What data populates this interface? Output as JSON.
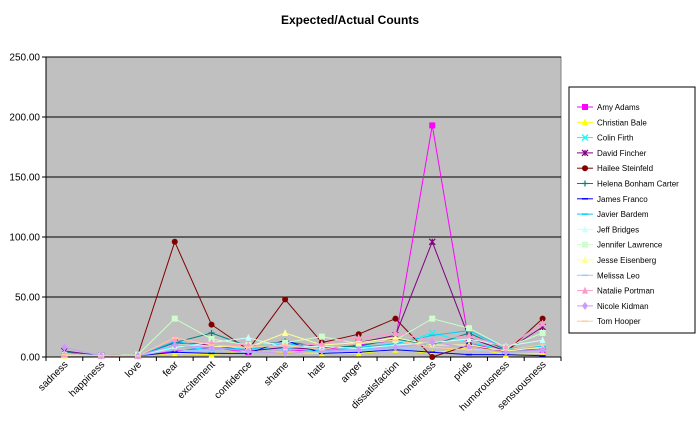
{
  "chart_data": {
    "type": "line",
    "title": "Expected/Actual Counts",
    "xlabel": "",
    "ylabel": "",
    "ylim": [
      0,
      250
    ],
    "y_ticks": [
      "0.00",
      "50.00",
      "100.00",
      "150.00",
      "200.00",
      "250.00"
    ],
    "grid": true,
    "legend_position": "right",
    "categories": [
      "sadness",
      "happiness",
      "love",
      "fear",
      "excitement",
      "confidence",
      "shame",
      "hate",
      "anger",
      "dissatisfaction",
      "loneliness",
      "pride",
      "humorousness",
      "sensuousness"
    ],
    "series": [
      {
        "name": "Amy Adams",
        "color": "#ff00ff",
        "marker": "square",
        "values": [
          2,
          1,
          1,
          5,
          8,
          4,
          5,
          6,
          10,
          14,
          193,
          12,
          4,
          6
        ]
      },
      {
        "name": "Christian Bale",
        "color": "#ffff00",
        "marker": "triangle",
        "values": [
          1,
          1,
          1,
          3,
          2,
          5,
          4,
          3,
          3,
          6,
          3,
          8,
          2,
          3
        ]
      },
      {
        "name": "Colin Firth",
        "color": "#00ffff",
        "marker": "x",
        "values": [
          2,
          1,
          1,
          9,
          6,
          8,
          7,
          5,
          6,
          10,
          20,
          12,
          6,
          10
        ]
      },
      {
        "name": "David Fincher",
        "color": "#800080",
        "marker": "star",
        "values": [
          5,
          1,
          1,
          12,
          10,
          5,
          8,
          6,
          12,
          18,
          96,
          16,
          5,
          25
        ]
      },
      {
        "name": "Hailee Steinfeld",
        "color": "#800000",
        "marker": "circle",
        "values": [
          3,
          1,
          2,
          96,
          27,
          6,
          48,
          12,
          19,
          32,
          0,
          10,
          4,
          32
        ]
      },
      {
        "name": "Helena Bonham Carter",
        "color": "#008080",
        "marker": "plus",
        "values": [
          4,
          1,
          1,
          12,
          20,
          9,
          13,
          8,
          9,
          15,
          10,
          20,
          6,
          6
        ]
      },
      {
        "name": "James Franco",
        "color": "#0000ff",
        "marker": "dash",
        "values": [
          1,
          1,
          1,
          4,
          3,
          3,
          14,
          3,
          4,
          6,
          4,
          2,
          2,
          1
        ]
      },
      {
        "name": "Javier Bardem",
        "color": "#00ccff",
        "marker": "dash",
        "values": [
          2,
          1,
          1,
          13,
          8,
          6,
          12,
          5,
          8,
          11,
          18,
          22,
          7,
          9
        ]
      },
      {
        "name": "Jeff Bridges",
        "color": "#ccffff",
        "marker": "triangle",
        "values": [
          3,
          1,
          1,
          8,
          12,
          16,
          8,
          9,
          7,
          10,
          12,
          15,
          9,
          14
        ]
      },
      {
        "name": "Jennifer Lawrence",
        "color": "#ccffcc",
        "marker": "square",
        "values": [
          2,
          1,
          2,
          32,
          15,
          10,
          12,
          17,
          11,
          14,
          32,
          24,
          8,
          20
        ]
      },
      {
        "name": "Jesse Eisenberg",
        "color": "#ffff99",
        "marker": "triangle",
        "values": [
          1,
          1,
          1,
          10,
          9,
          8,
          20,
          10,
          12,
          16,
          10,
          10,
          5,
          8
        ]
      },
      {
        "name": "Melissa Leo",
        "color": "#99ccff",
        "marker": "dash",
        "values": [
          3,
          1,
          1,
          6,
          5,
          4,
          5,
          4,
          5,
          7,
          8,
          6,
          4,
          5
        ]
      },
      {
        "name": "Natalie Portman",
        "color": "#ff99cc",
        "marker": "triangle",
        "values": [
          2,
          1,
          1,
          15,
          12,
          10,
          9,
          11,
          16,
          20,
          14,
          18,
          8,
          28
        ]
      },
      {
        "name": "Nicole Kidman",
        "color": "#cc99ff",
        "marker": "diamond",
        "values": [
          8,
          1,
          1,
          10,
          8,
          5,
          3,
          5,
          6,
          8,
          12,
          8,
          4,
          6
        ]
      },
      {
        "name": "Tom Hooper",
        "color": "#ffcc99",
        "marker": "dash",
        "values": [
          2,
          1,
          1,
          16,
          10,
          8,
          10,
          6,
          12,
          14,
          8,
          6,
          6,
          10
        ]
      }
    ]
  }
}
